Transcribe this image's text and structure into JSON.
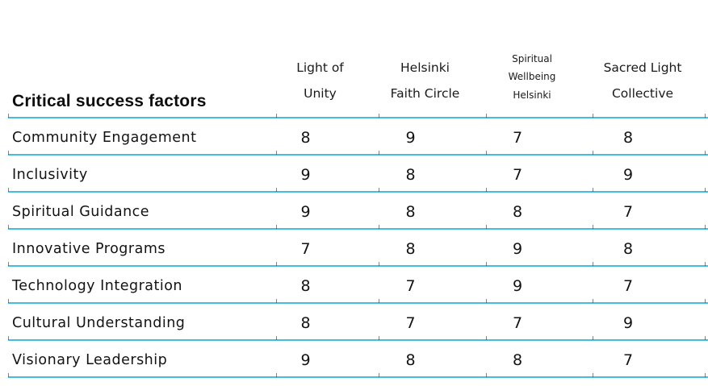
{
  "page": {
    "background": "#ffffff",
    "line_color": "#45bddf",
    "text_color": "#131313"
  },
  "table": {
    "corner_header": "Critical success factors",
    "columns": [
      {
        "label": "Light of Unity",
        "lines": [
          "Light of",
          "Unity"
        ],
        "small": false
      },
      {
        "label": "Helsinki Faith Circle",
        "lines": [
          "Helsinki",
          "Faith Circle"
        ],
        "small": false
      },
      {
        "label": "Spiritual Wellbeing Helsinki",
        "lines": [
          "Spiritual",
          "Wellbeing",
          "Helsinki"
        ],
        "small": true
      },
      {
        "label": "Sacred Light Collective",
        "lines": [
          "Sacred Light",
          "Collective"
        ],
        "small": false
      }
    ],
    "rows": [
      {
        "label": "Community Engagement",
        "values": [
          8,
          9,
          7,
          8
        ]
      },
      {
        "label": "Inclusivity",
        "values": [
          9,
          8,
          7,
          9
        ]
      },
      {
        "label": "Spiritual Guidance",
        "values": [
          9,
          8,
          8,
          7
        ]
      },
      {
        "label": "Innovative Programs",
        "values": [
          7,
          8,
          9,
          8
        ]
      },
      {
        "label": "Technology Integration",
        "values": [
          8,
          7,
          9,
          7
        ]
      },
      {
        "label": "Cultural Understanding",
        "values": [
          8,
          7,
          7,
          9
        ]
      },
      {
        "label": "Visionary Leadership",
        "values": [
          9,
          8,
          8,
          7
        ]
      }
    ]
  },
  "chart_data": {
    "type": "table",
    "title": "Critical success factors",
    "columns": [
      "Light of Unity",
      "Helsinki Faith Circle",
      "Spiritual Wellbeing Helsinki",
      "Sacred Light Collective"
    ],
    "rows": [
      "Community Engagement",
      "Inclusivity",
      "Spiritual Guidance",
      "Innovative Programs",
      "Technology Integration",
      "Cultural Understanding",
      "Visionary Leadership"
    ],
    "values": [
      [
        8,
        9,
        7,
        8
      ],
      [
        9,
        8,
        7,
        9
      ],
      [
        9,
        8,
        8,
        7
      ],
      [
        7,
        8,
        9,
        8
      ],
      [
        8,
        7,
        9,
        7
      ],
      [
        8,
        7,
        7,
        9
      ],
      [
        9,
        8,
        8,
        7
      ]
    ],
    "value_range": [
      7,
      9
    ],
    "grid": "horizontal-rules-only",
    "rule_color": "#45bddf"
  }
}
